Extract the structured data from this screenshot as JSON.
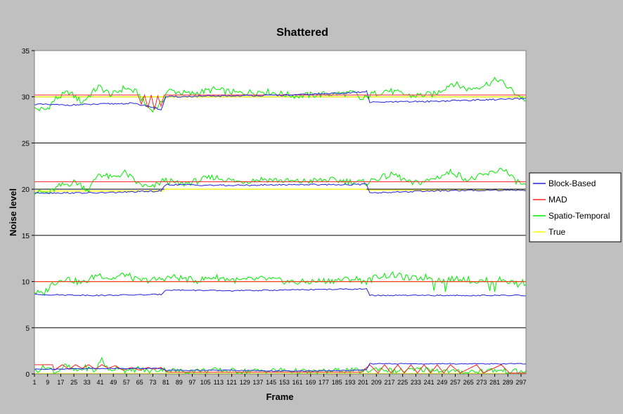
{
  "chart_data": {
    "type": "line",
    "title": "Shattered",
    "xlabel": "Frame",
    "ylabel": "Noise level",
    "xlim": [
      1,
      300
    ],
    "ylim": [
      0,
      35
    ],
    "y_ticks": [
      0,
      5,
      10,
      15,
      20,
      25,
      30,
      35
    ],
    "x_ticks": [
      1,
      9,
      17,
      25,
      33,
      41,
      49,
      57,
      65,
      73,
      81,
      89,
      97,
      105,
      113,
      121,
      129,
      137,
      145,
      153,
      161,
      169,
      177,
      185,
      193,
      201,
      209,
      217,
      225,
      233,
      241,
      249,
      257,
      265,
      273,
      281,
      289,
      297
    ],
    "grid": "horizontal",
    "plot_background": "#ffffff",
    "legend": {
      "placement": "right",
      "entries": [
        {
          "label": "Block-Based",
          "color": "#2020e0"
        },
        {
          "label": "MAD",
          "color": "#ff2020"
        },
        {
          "label": "Spatio-Temporal",
          "color": "#00ee00"
        },
        {
          "label": "True",
          "color": "#ffff00"
        }
      ]
    },
    "groups": [
      {
        "true_level": 30,
        "true_segments": [
          [
            1,
            80,
            30
          ],
          [
            80,
            203,
            30
          ],
          [
            203,
            300,
            30
          ]
        ],
        "mad": [
          [
            1,
            30.2
          ],
          [
            64,
            30.2
          ],
          [
            66,
            29.2
          ],
          [
            68,
            30.2
          ],
          [
            70,
            28.8
          ],
          [
            72,
            30.2
          ],
          [
            74,
            28.6
          ],
          [
            76,
            30.1
          ],
          [
            78,
            29.0
          ],
          [
            80,
            30.2
          ],
          [
            300,
            30.2
          ]
        ],
        "block": [
          [
            1,
            29.2
          ],
          [
            20,
            29.1
          ],
          [
            40,
            29.2
          ],
          [
            60,
            29.3
          ],
          [
            70,
            29.0
          ],
          [
            78,
            28.6
          ],
          [
            81,
            30.0
          ],
          [
            120,
            30.1
          ],
          [
            160,
            30.2
          ],
          [
            200,
            30.5
          ],
          [
            203,
            30.6
          ],
          [
            205,
            29.4
          ],
          [
            240,
            29.5
          ],
          [
            280,
            29.7
          ],
          [
            300,
            29.8
          ]
        ],
        "spatio": [
          [
            1,
            28.7
          ],
          [
            8,
            28.6
          ],
          [
            14,
            29.8
          ],
          [
            22,
            30.5
          ],
          [
            30,
            29.4
          ],
          [
            40,
            31.1
          ],
          [
            48,
            30.2
          ],
          [
            56,
            31.0
          ],
          [
            64,
            30.4
          ],
          [
            68,
            29.3
          ],
          [
            72,
            28.6
          ],
          [
            78,
            29.2
          ],
          [
            82,
            30.7
          ],
          [
            96,
            30.3
          ],
          [
            110,
            30.8
          ],
          [
            125,
            30.4
          ],
          [
            140,
            30.6
          ],
          [
            160,
            30.1
          ],
          [
            180,
            30.3
          ],
          [
            196,
            30.4
          ],
          [
            200,
            29.6
          ],
          [
            205,
            30.2
          ],
          [
            215,
            30.7
          ],
          [
            230,
            30.1
          ],
          [
            245,
            30.3
          ],
          [
            255,
            31.5
          ],
          [
            265,
            30.8
          ],
          [
            275,
            31.3
          ],
          [
            283,
            31.9
          ],
          [
            290,
            30.9
          ],
          [
            295,
            30.2
          ],
          [
            300,
            29.6
          ]
        ],
        "spatio_amp": 0.35,
        "block_amp": 0.08
      },
      {
        "true_level": 20,
        "true_segments": [
          [
            1,
            80,
            19.8
          ],
          [
            80,
            203,
            20
          ],
          [
            203,
            300,
            19.9
          ]
        ],
        "mad": [
          [
            1,
            20.8
          ],
          [
            300,
            20.8
          ]
        ],
        "block": [
          [
            1,
            19.6
          ],
          [
            40,
            19.6
          ],
          [
            78,
            19.8
          ],
          [
            81,
            20.5
          ],
          [
            120,
            20.4
          ],
          [
            160,
            20.5
          ],
          [
            200,
            20.5
          ],
          [
            203,
            20.6
          ],
          [
            205,
            19.6
          ],
          [
            240,
            19.8
          ],
          [
            280,
            19.9
          ],
          [
            300,
            19.9
          ]
        ],
        "spatio": [
          [
            1,
            19.7
          ],
          [
            10,
            19.6
          ],
          [
            16,
            20.3
          ],
          [
            26,
            20.8
          ],
          [
            34,
            19.9
          ],
          [
            40,
            21.7
          ],
          [
            48,
            21.2
          ],
          [
            56,
            21.8
          ],
          [
            64,
            20.6
          ],
          [
            72,
            20.1
          ],
          [
            80,
            21.0
          ],
          [
            90,
            20.5
          ],
          [
            100,
            20.9
          ],
          [
            110,
            21.3
          ],
          [
            125,
            20.8
          ],
          [
            140,
            21.1
          ],
          [
            160,
            20.8
          ],
          [
            180,
            21.0
          ],
          [
            196,
            20.8
          ],
          [
            203,
            20.7
          ],
          [
            210,
            21.2
          ],
          [
            220,
            21.6
          ],
          [
            230,
            20.6
          ],
          [
            240,
            20.9
          ],
          [
            255,
            21.9
          ],
          [
            265,
            21.0
          ],
          [
            280,
            21.8
          ],
          [
            286,
            22.3
          ],
          [
            292,
            21.1
          ],
          [
            300,
            20.3
          ]
        ],
        "spatio_amp": 0.35,
        "block_amp": 0.08
      },
      {
        "true_level": 10,
        "true_segments": [
          [
            1,
            300,
            10
          ]
        ],
        "mad": [
          [
            1,
            10.0
          ],
          [
            300,
            10.0
          ]
        ],
        "block": [
          [
            1,
            8.6
          ],
          [
            40,
            8.5
          ],
          [
            78,
            8.6
          ],
          [
            81,
            9.1
          ],
          [
            120,
            9.0
          ],
          [
            160,
            9.1
          ],
          [
            200,
            9.2
          ],
          [
            203,
            9.2
          ],
          [
            205,
            8.5
          ],
          [
            240,
            8.5
          ],
          [
            280,
            8.5
          ],
          [
            300,
            8.5
          ]
        ],
        "spatio": [
          [
            1,
            8.9
          ],
          [
            6,
            8.6
          ],
          [
            12,
            9.8
          ],
          [
            20,
            10.4
          ],
          [
            30,
            9.8
          ],
          [
            40,
            10.8
          ],
          [
            48,
            10.3
          ],
          [
            56,
            10.8
          ],
          [
            64,
            10.1
          ],
          [
            75,
            10.2
          ],
          [
            85,
            10.5
          ],
          [
            100,
            10.1
          ],
          [
            110,
            10.5
          ],
          [
            125,
            10.1
          ],
          [
            140,
            10.3
          ],
          [
            160,
            9.9
          ],
          [
            180,
            10.1
          ],
          [
            196,
            10.3
          ],
          [
            203,
            10.0
          ],
          [
            210,
            10.6
          ],
          [
            220,
            10.7
          ],
          [
            230,
            10.3
          ],
          [
            240,
            10.5
          ],
          [
            250,
            10.1
          ],
          [
            260,
            10.4
          ],
          [
            270,
            10.0
          ],
          [
            285,
            10.2
          ],
          [
            292,
            9.9
          ],
          [
            300,
            9.9
          ]
        ],
        "spatio_amp": 0.35,
        "block_amp": 0.06,
        "spatio_dips": [
          [
            244,
            9.0
          ],
          [
            251,
            8.9
          ],
          [
            278,
            9.0
          ],
          [
            281,
            8.9
          ],
          [
            295,
            9.4
          ]
        ]
      },
      {
        "true_level": 0,
        "true_segments": [
          [
            1,
            300,
            0.05
          ]
        ],
        "mad": [
          [
            1,
            1.0
          ],
          [
            12,
            1.0
          ],
          [
            13,
            0.4
          ],
          [
            18,
            1.0
          ],
          [
            22,
            0.5
          ],
          [
            26,
            1.0
          ],
          [
            30,
            0.6
          ],
          [
            34,
            1.0
          ],
          [
            38,
            0.5
          ],
          [
            42,
            1.0
          ],
          [
            46,
            0.6
          ],
          [
            50,
            0.9
          ],
          [
            55,
            0.4
          ],
          [
            60,
            0.7
          ],
          [
            65,
            0.4
          ],
          [
            70,
            0.7
          ],
          [
            74,
            0.5
          ],
          [
            78,
            0.7
          ],
          [
            82,
            0.2
          ],
          [
            200,
            0.2
          ],
          [
            205,
            1.0
          ],
          [
            210,
            0.1
          ],
          [
            214,
            1.0
          ],
          [
            218,
            0.1
          ],
          [
            222,
            1.0
          ],
          [
            226,
            0.1
          ],
          [
            230,
            1.0
          ],
          [
            234,
            0.1
          ],
          [
            238,
            1.0
          ],
          [
            242,
            0.1
          ],
          [
            246,
            1.0
          ],
          [
            250,
            0.1
          ],
          [
            254,
            1.0
          ],
          [
            260,
            0.1
          ],
          [
            270,
            1.0
          ],
          [
            274,
            0.1
          ],
          [
            285,
            1.0
          ],
          [
            290,
            0.1
          ],
          [
            300,
            0.1
          ]
        ],
        "block": [
          [
            1,
            0.5
          ],
          [
            40,
            0.6
          ],
          [
            78,
            0.6
          ],
          [
            81,
            0.4
          ],
          [
            120,
            0.4
          ],
          [
            160,
            0.3
          ],
          [
            200,
            0.4
          ],
          [
            203,
            0.5
          ],
          [
            205,
            1.1
          ],
          [
            240,
            1.1
          ],
          [
            280,
            1.1
          ],
          [
            300,
            1.1
          ]
        ],
        "spatio": [
          [
            1,
            0.3
          ],
          [
            8,
            0.8
          ],
          [
            14,
            0.2
          ],
          [
            20,
            0.9
          ],
          [
            26,
            0.3
          ],
          [
            32,
            0.7
          ],
          [
            38,
            0.3
          ],
          [
            42,
            1.7
          ],
          [
            46,
            0.3
          ],
          [
            52,
            0.8
          ],
          [
            58,
            0.2
          ],
          [
            64,
            0.6
          ],
          [
            70,
            0.3
          ],
          [
            78,
            0.5
          ],
          [
            90,
            0.3
          ],
          [
            110,
            0.4
          ],
          [
            130,
            0.3
          ],
          [
            150,
            0.4
          ],
          [
            170,
            0.2
          ],
          [
            190,
            0.4
          ],
          [
            203,
            0.3
          ],
          [
            210,
            0.6
          ],
          [
            220,
            0.3
          ],
          [
            240,
            0.5
          ],
          [
            260,
            0.2
          ],
          [
            280,
            0.4
          ],
          [
            300,
            0.2
          ]
        ],
        "spatio_amp": 0.3,
        "block_amp": 0.05
      }
    ]
  }
}
